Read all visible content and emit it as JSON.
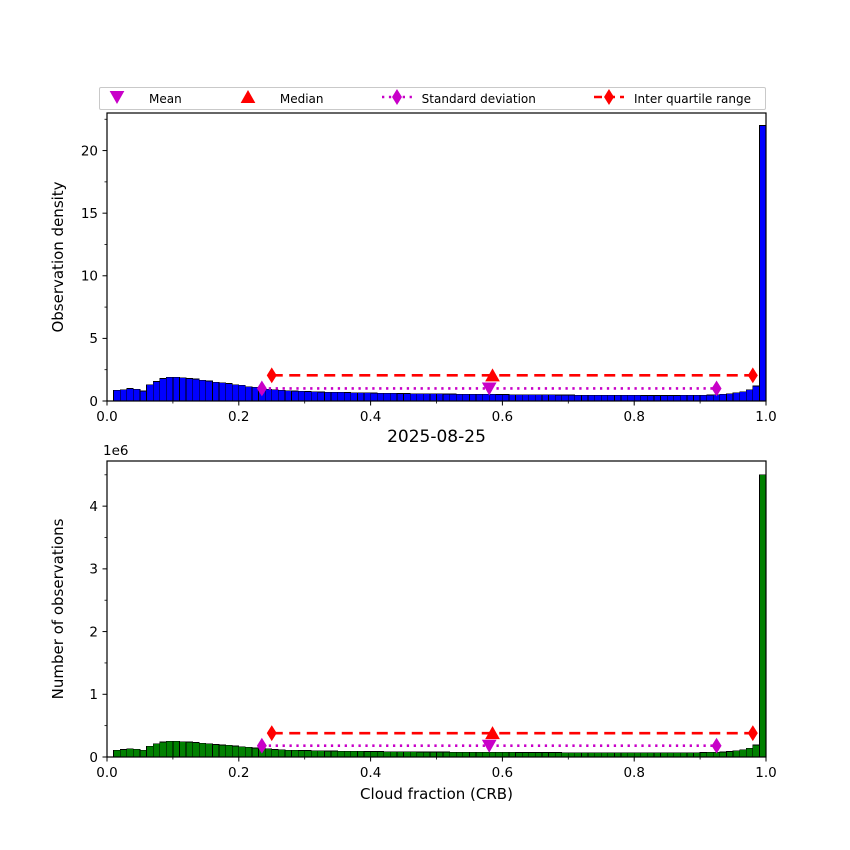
{
  "colors": {
    "blue_bars": "#0000ff",
    "green_bars": "#008000",
    "red": "#ff0000",
    "magenta": "#c800c8",
    "frame": "#000000"
  },
  "legend": {
    "items": [
      {
        "label": "Mean",
        "marker": "triangle-down",
        "color": "#c800c8"
      },
      {
        "label": "Median",
        "marker": "triangle-up",
        "color": "#ff0000"
      },
      {
        "label": "Standard deviation",
        "marker": "diamond-dotted-line",
        "color": "#c800c8"
      },
      {
        "label": "Inter quartile range",
        "marker": "diamond-dashed-line",
        "color": "#ff0000"
      }
    ]
  },
  "chart_data": [
    {
      "type": "bar",
      "title": "",
      "ylabel": "Observation density",
      "xlabel": "",
      "bar_color": "#0000ff",
      "bin_start": 0.0,
      "bin_width": 0.01,
      "xlim": [
        0.0,
        1.0
      ],
      "ylim": [
        0,
        23
      ],
      "yticks": [
        0,
        5,
        10,
        15,
        20
      ],
      "ytick_labels": [
        "0",
        "5",
        "10",
        "15",
        "20"
      ],
      "yminor_step": 2.5,
      "xticks": [
        0.0,
        0.2,
        0.4,
        0.6,
        0.8,
        1.0
      ],
      "xtick_labels": [
        "0.0",
        "0.2",
        "0.4",
        "0.6",
        "0.8",
        "1.0"
      ],
      "xminor_step": 0.1,
      "values": [
        0,
        0.85,
        0.9,
        1.0,
        0.95,
        0.8,
        1.3,
        1.55,
        1.8,
        1.9,
        1.9,
        1.85,
        1.8,
        1.75,
        1.65,
        1.6,
        1.5,
        1.45,
        1.4,
        1.3,
        1.25,
        1.15,
        1.1,
        1.0,
        0.95,
        0.9,
        0.85,
        0.82,
        0.8,
        0.78,
        0.76,
        0.74,
        0.72,
        0.71,
        0.7,
        0.69,
        0.68,
        0.67,
        0.66,
        0.65,
        0.64,
        0.63,
        0.62,
        0.61,
        0.6,
        0.6,
        0.59,
        0.58,
        0.58,
        0.57,
        0.57,
        0.56,
        0.56,
        0.55,
        0.55,
        0.54,
        0.54,
        0.53,
        0.53,
        0.52,
        0.52,
        0.51,
        0.51,
        0.5,
        0.5,
        0.5,
        0.49,
        0.49,
        0.48,
        0.48,
        0.48,
        0.47,
        0.47,
        0.47,
        0.46,
        0.46,
        0.46,
        0.45,
        0.45,
        0.45,
        0.45,
        0.44,
        0.44,
        0.44,
        0.44,
        0.44,
        0.44,
        0.45,
        0.45,
        0.46,
        0.47,
        0.48,
        0.5,
        0.53,
        0.58,
        0.65,
        0.75,
        0.9,
        1.2,
        22.0
      ],
      "markers": {
        "mean_x": 0.58,
        "median_x": 0.585,
        "std_x": [
          0.235,
          0.925
        ],
        "iqr_x": [
          0.25,
          0.98
        ],
        "std_y": 1.0,
        "iqr_y": 2.05
      }
    },
    {
      "type": "bar",
      "title": "2025-08-25",
      "ylabel": "Number of observations",
      "xlabel": "Cloud fraction (CRB)",
      "offset_text": "1e6",
      "unit_multiplier": 1000000,
      "bar_color": "#008000",
      "bin_start": 0.0,
      "bin_width": 0.01,
      "xlim": [
        0.0,
        1.0
      ],
      "ylim": [
        0,
        4.72
      ],
      "yticks": [
        0,
        1,
        2,
        3,
        4
      ],
      "ytick_labels": [
        "0",
        "1",
        "2",
        "3",
        "4"
      ],
      "yminor_step": 0.5,
      "xticks": [
        0.0,
        0.2,
        0.4,
        0.6,
        0.8,
        1.0
      ],
      "xtick_labels": [
        "0.0",
        "0.2",
        "0.4",
        "0.6",
        "0.8",
        "1.0"
      ],
      "xminor_step": 0.1,
      "values": [
        0,
        0.11,
        0.12,
        0.13,
        0.125,
        0.11,
        0.17,
        0.21,
        0.24,
        0.25,
        0.25,
        0.245,
        0.24,
        0.23,
        0.22,
        0.21,
        0.2,
        0.19,
        0.185,
        0.175,
        0.165,
        0.155,
        0.145,
        0.135,
        0.13,
        0.12,
        0.115,
        0.11,
        0.108,
        0.105,
        0.103,
        0.1,
        0.098,
        0.096,
        0.095,
        0.093,
        0.092,
        0.091,
        0.09,
        0.089,
        0.088,
        0.087,
        0.086,
        0.085,
        0.084,
        0.083,
        0.082,
        0.081,
        0.08,
        0.08,
        0.079,
        0.079,
        0.078,
        0.078,
        0.077,
        0.077,
        0.076,
        0.076,
        0.075,
        0.075,
        0.074,
        0.074,
        0.073,
        0.073,
        0.072,
        0.072,
        0.072,
        0.071,
        0.071,
        0.07,
        0.07,
        0.07,
        0.07,
        0.069,
        0.069,
        0.069,
        0.068,
        0.068,
        0.068,
        0.068,
        0.068,
        0.067,
        0.067,
        0.067,
        0.067,
        0.067,
        0.068,
        0.068,
        0.069,
        0.07,
        0.072,
        0.074,
        0.077,
        0.081,
        0.088,
        0.098,
        0.115,
        0.14,
        0.19,
        4.5
      ],
      "markers": {
        "mean_x": 0.58,
        "median_x": 0.585,
        "std_x": [
          0.235,
          0.925
        ],
        "iqr_x": [
          0.25,
          0.98
        ],
        "std_y": 0.18,
        "iqr_y": 0.38
      }
    }
  ]
}
